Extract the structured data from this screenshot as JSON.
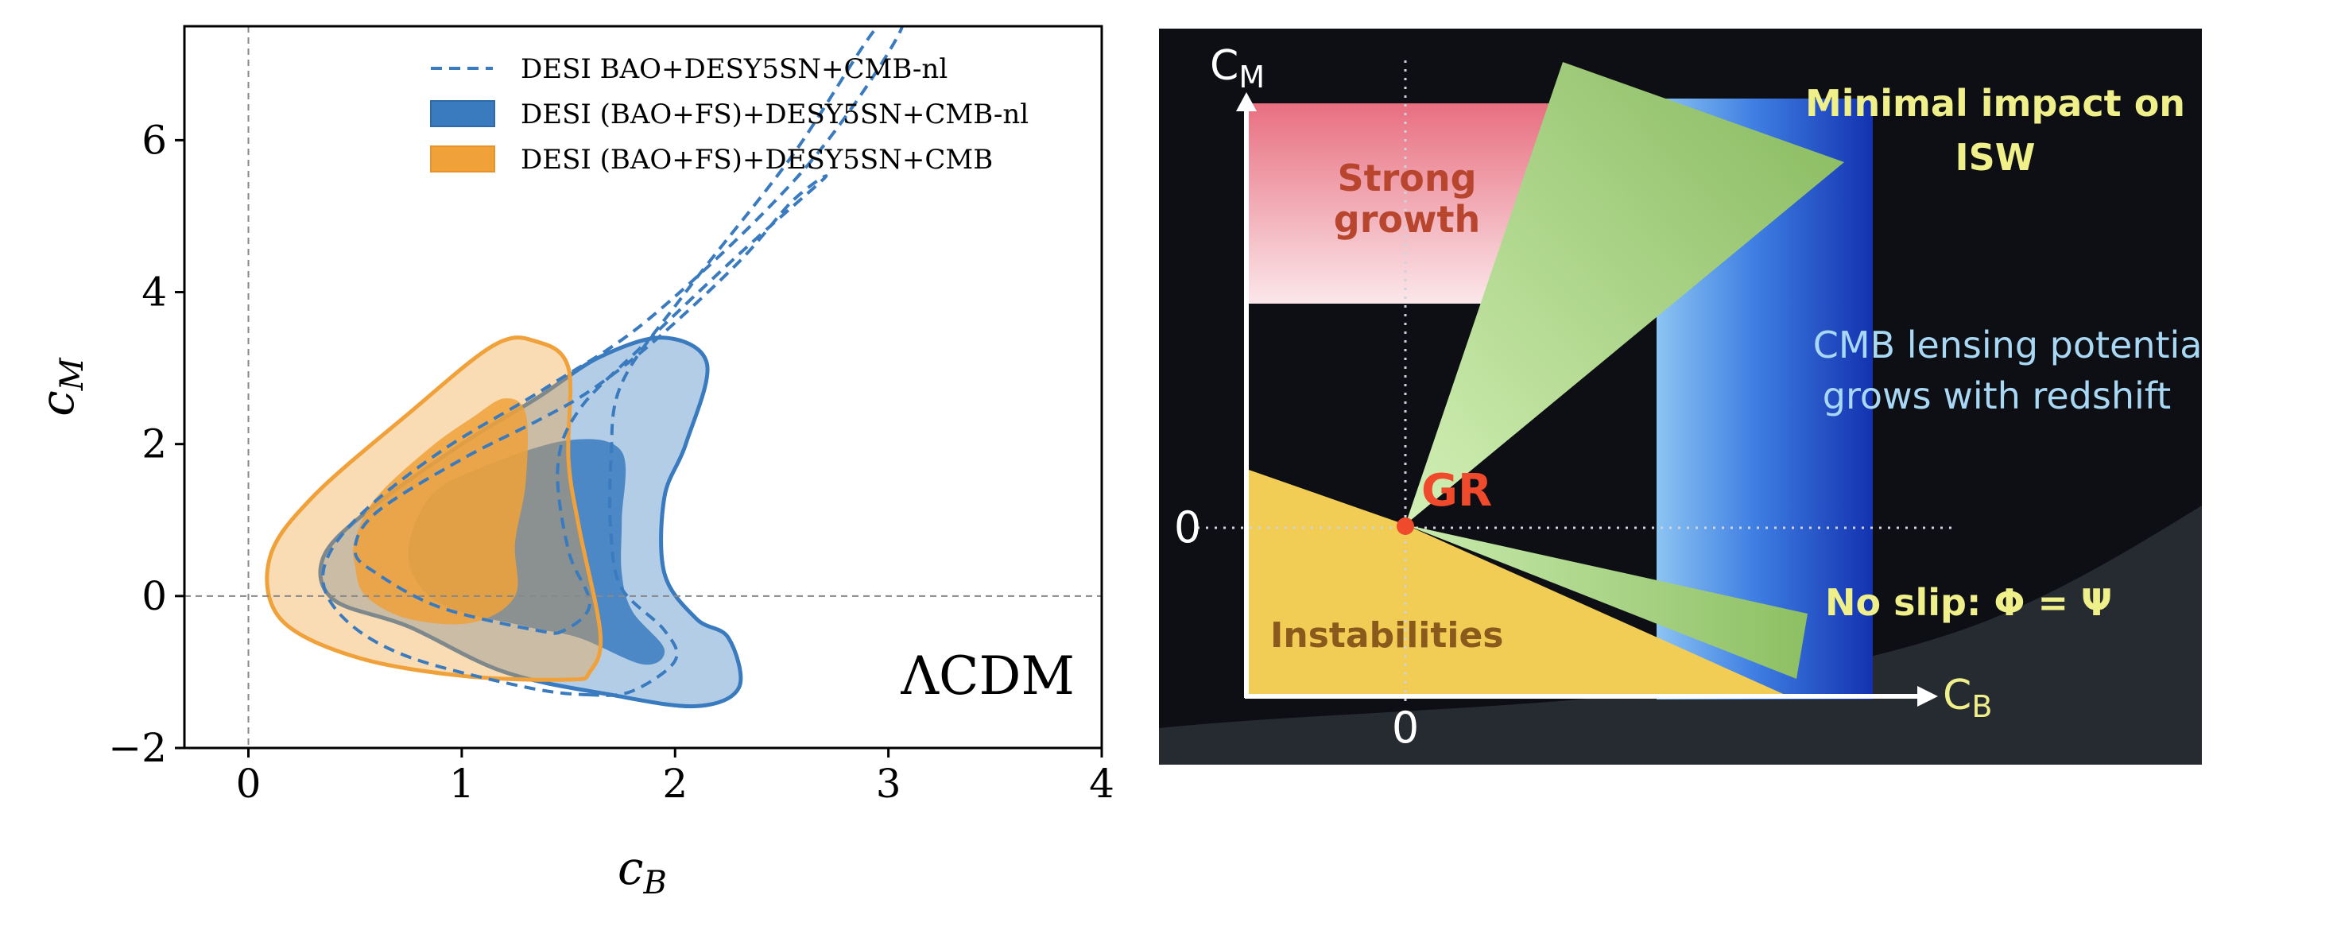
{
  "chart_data": [
    {
      "type": "contour",
      "xlabel": "c_B",
      "ylabel": "c_M",
      "xlim": [
        -0.3,
        4
      ],
      "ylim": [
        -2,
        7.5
      ],
      "xticks": [
        0,
        1,
        2,
        3,
        4
      ],
      "yticks": [
        -2,
        0,
        2,
        4,
        6
      ],
      "xtick_labels": [
        "0",
        "1",
        "2",
        "3",
        "4"
      ],
      "ytick_labels": [
        "−2",
        "0",
        "2",
        "4",
        "6"
      ],
      "reference_lines": {
        "x": 0,
        "y": 0,
        "style": "dashed",
        "color": "#888888"
      },
      "legend_position": "top-right",
      "annotation": "ΛCDM",
      "series": [
        {
          "name": "DESI BAO+DESY5SN+CMB-nl",
          "style": "dashed-contour",
          "color": "#3a7bbf",
          "contours": [
            {
              "level": "68%",
              "points": [
                [
                  1.48,
                  -0.45
                ],
                [
                  1.35,
                  -0.45
                ],
                [
                  0.9,
                  -0.15
                ],
                [
                  0.6,
                  0.3
                ],
                [
                  0.5,
                  0.6
                ],
                [
                  0.6,
                  1.1
                ],
                [
                  1.0,
                  1.8
                ],
                [
                  1.35,
                  2.3
                ],
                [
                  1.6,
                  2.7
                ],
                [
                  1.9,
                  3.35
                ],
                [
                  2.3,
                  4.4
                ],
                [
                  2.55,
                  5.2
                ],
                [
                  2.7,
                  5.5
                ],
                [
                  2.3,
                  4.5
                ],
                [
                  1.85,
                  3.3
                ],
                [
                  1.55,
                  2.45
                ],
                [
                  1.45,
                  1.7
                ],
                [
                  1.5,
                  0.6
                ],
                [
                  1.6,
                  -0.1
                ]
              ]
            },
            {
              "level": "95%",
              "points": [
                [
                  1.6,
                  -1.3
                ],
                [
                  1.3,
                  -1.2
                ],
                [
                  0.75,
                  -0.8
                ],
                [
                  0.45,
                  -0.3
                ],
                [
                  0.35,
                  0.3
                ],
                [
                  0.5,
                  1.0
                ],
                [
                  0.9,
                  1.9
                ],
                [
                  1.4,
                  2.75
                ],
                [
                  1.9,
                  3.7
                ],
                [
                  2.6,
                  5.6
                ],
                [
                  3.05,
                  7.4
                ],
                [
                  2.95,
                  7.5
                ],
                [
                  2.55,
                  5.8
                ],
                [
                  2.05,
                  4.0
                ],
                [
                  1.75,
                  2.8
                ],
                [
                  1.7,
                  1.8
                ],
                [
                  1.7,
                  0.8
                ],
                [
                  1.75,
                  0.1
                ],
                [
                  1.95,
                  -0.45
                ],
                [
                  2.0,
                  -0.85
                ],
                [
                  1.8,
                  -1.25
                ]
              ]
            }
          ]
        },
        {
          "name": "DESI (BAO+FS)+DESY5SN+CMB-nl",
          "style": "filled-contour",
          "color": "#3a7bbf",
          "contours": [
            {
              "level": "68%",
              "points": [
                [
                  1.55,
                  -0.55
                ],
                [
                  1.3,
                  -0.4
                ],
                [
                  0.9,
                  -0.1
                ],
                [
                  0.75,
                  0.5
                ],
                [
                  0.85,
                  1.3
                ],
                [
                  1.1,
                  1.7
                ],
                [
                  1.5,
                  2.05
                ],
                [
                  1.75,
                  1.9
                ],
                [
                  1.75,
                  1.0
                ],
                [
                  1.75,
                  0.3
                ],
                [
                  1.8,
                  -0.2
                ],
                [
                  1.95,
                  -0.7
                ],
                [
                  1.85,
                  -0.9
                ]
              ]
            },
            {
              "level": "95%",
              "points": [
                [
                  2.1,
                  -1.45
                ],
                [
                  1.7,
                  -1.3
                ],
                [
                  1.2,
                  -1.0
                ],
                [
                  0.75,
                  -0.4
                ],
                [
                  0.4,
                  -0.05
                ],
                [
                  0.35,
                  0.5
                ],
                [
                  0.55,
                  1.1
                ],
                [
                  1.0,
                  2.0
                ],
                [
                  1.35,
                  2.6
                ],
                [
                  1.65,
                  3.15
                ],
                [
                  1.95,
                  3.4
                ],
                [
                  2.15,
                  3.05
                ],
                [
                  2.05,
                  2.0
                ],
                [
                  1.95,
                  1.3
                ],
                [
                  1.95,
                  0.3
                ],
                [
                  2.1,
                  -0.3
                ],
                [
                  2.25,
                  -0.55
                ],
                [
                  2.3,
                  -1.2
                ]
              ]
            }
          ]
        },
        {
          "name": "DESI (BAO+FS)+DESY5SN+CMB",
          "style": "filled-contour",
          "color": "#f0a13a",
          "contours": [
            {
              "level": "68%",
              "points": [
                [
                  1.05,
                  -0.35
                ],
                [
                  0.75,
                  -0.3
                ],
                [
                  0.55,
                  0.0
                ],
                [
                  0.5,
                  0.4
                ],
                [
                  0.5,
                  0.75
                ],
                [
                  0.6,
                  1.3
                ],
                [
                  0.85,
                  1.95
                ],
                [
                  1.05,
                  2.35
                ],
                [
                  1.2,
                  2.6
                ],
                [
                  1.3,
                  2.4
                ],
                [
                  1.3,
                  1.5
                ],
                [
                  1.25,
                  0.7
                ],
                [
                  1.25,
                  0.0
                ]
              ]
            },
            {
              "level": "95%",
              "points": [
                [
                  1.5,
                  -1.1
                ],
                [
                  1.0,
                  -1.05
                ],
                [
                  0.5,
                  -0.8
                ],
                [
                  0.15,
                  -0.3
                ],
                [
                  0.1,
                  0.5
                ],
                [
                  0.3,
                  1.3
                ],
                [
                  0.75,
                  2.4
                ],
                [
                  1.15,
                  3.3
                ],
                [
                  1.35,
                  3.35
                ],
                [
                  1.5,
                  3.0
                ],
                [
                  1.5,
                  1.8
                ],
                [
                  1.55,
                  0.9
                ],
                [
                  1.65,
                  -0.5
                ],
                [
                  1.6,
                  -1.0
                ]
              ]
            }
          ]
        }
      ]
    },
    {
      "type": "schematic",
      "xlabel": "C_B",
      "ylabel": "C_M",
      "zero_x_label": "0",
      "zero_y_label": "0",
      "regions": {
        "strong_growth": "Strong\ngrowth",
        "instabilities": "Instabilities",
        "isw": "Minimal impact on\nISW",
        "cmb_lensing": "CMB lensing potential\ngrows with redshift",
        "no_slip": "No slip: Φ = Ψ",
        "gr": "GR"
      },
      "colors": {
        "background": "#0d0f14",
        "strong_growth": "#e86f80",
        "instabilities": "#f2cd55",
        "wedges": "#b6e39c",
        "lensing_band": "#2a56d6",
        "gr_point": "#f04a2c",
        "label_yellow": "#f0f08a",
        "label_cyan": "#a9d8f5",
        "label_red": "#b8452e"
      }
    }
  ]
}
